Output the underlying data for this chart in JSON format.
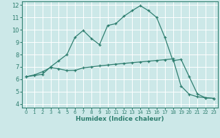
{
  "xlabel": "Humidex (Indice chaleur)",
  "bg_color": "#cce8e8",
  "grid_color": "#ffffff",
  "line_color": "#2d7d6e",
  "xlim": [
    -0.5,
    23.5
  ],
  "ylim": [
    3.7,
    12.3
  ],
  "x_ticks": [
    0,
    1,
    2,
    3,
    4,
    5,
    6,
    7,
    8,
    9,
    10,
    11,
    12,
    13,
    14,
    15,
    16,
    17,
    18,
    19,
    20,
    21,
    22,
    23
  ],
  "y_ticks": [
    4,
    5,
    6,
    7,
    8,
    9,
    10,
    11,
    12
  ],
  "curve1_x": [
    0,
    1,
    2,
    3,
    4,
    5,
    6,
    7,
    8,
    9,
    10,
    11,
    12,
    13,
    14,
    15,
    16,
    17,
    18,
    19,
    20,
    21,
    22,
    23
  ],
  "curve1_y": [
    6.2,
    6.3,
    6.4,
    7.0,
    7.5,
    8.0,
    9.4,
    9.95,
    9.3,
    8.8,
    10.35,
    10.5,
    11.1,
    11.55,
    11.95,
    11.55,
    11.0,
    9.4,
    7.5,
    7.6,
    6.2,
    4.8,
    4.5,
    4.45
  ],
  "curve2_x": [
    0,
    1,
    2,
    3,
    4,
    5,
    6,
    7,
    8,
    9,
    10,
    11,
    12,
    13,
    14,
    15,
    16,
    17,
    18,
    19,
    20,
    21,
    22,
    23
  ],
  "curve2_y": [
    6.2,
    6.35,
    6.6,
    6.95,
    6.85,
    6.7,
    6.72,
    6.92,
    7.0,
    7.08,
    7.15,
    7.22,
    7.28,
    7.34,
    7.4,
    7.46,
    7.52,
    7.58,
    7.65,
    5.45,
    4.78,
    4.58,
    4.5,
    4.45
  ],
  "xlabel_fontsize": 6.5,
  "tick_fontsize_x": 5.0,
  "tick_fontsize_y": 6.0
}
